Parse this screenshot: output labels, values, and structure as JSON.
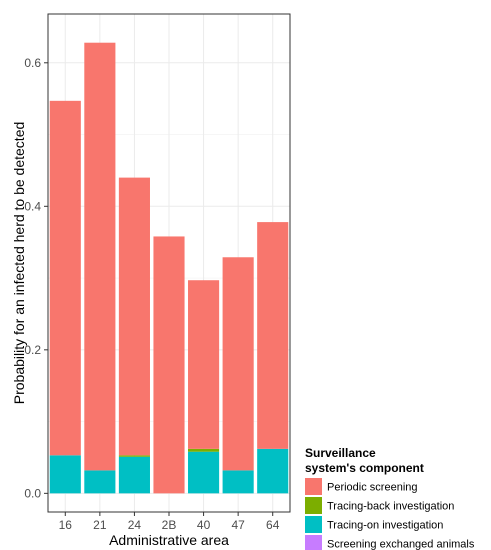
{
  "chart_data": {
    "type": "bar",
    "stacked": true,
    "categories": [
      "16",
      "21",
      "24",
      "2B",
      "40",
      "47",
      "64"
    ],
    "series": [
      {
        "name": "Tracing-on investigation",
        "color": "#00BFC4",
        "values": [
          0.053,
          0.032,
          0.051,
          0.0,
          0.058,
          0.032,
          0.062
        ]
      },
      {
        "name": "Tracing-back investigation",
        "color": "#7CAE00",
        "values": [
          0.0,
          0.0,
          0.002,
          0.0,
          0.004,
          0.0,
          0.0
        ]
      },
      {
        "name": "Screening exchanged animals",
        "color": "#C77CFF",
        "values": [
          0.0,
          0.0,
          0.0,
          0.0,
          0.0,
          0.0,
          0.0
        ]
      },
      {
        "name": "Periodic screening",
        "color": "#F8766D",
        "values": [
          0.494,
          0.596,
          0.387,
          0.358,
          0.235,
          0.297,
          0.316
        ]
      }
    ],
    "xlabel": "Administrative area",
    "ylabel": "Probability for an infected herd to be detected",
    "ylim": [
      -0.026,
      0.668
    ],
    "yticks": [
      "0.0",
      "0.2",
      "0.4",
      "0.6"
    ],
    "ytick_values": [
      0.0,
      0.2,
      0.4,
      0.6
    ],
    "grid": true,
    "legend": {
      "position": "bottom-right",
      "title_lines": [
        "Surveillance",
        "system's component"
      ],
      "entries": [
        {
          "label": "Periodic screening",
          "color": "#F8766D"
        },
        {
          "label": "Tracing-back investigation",
          "color": "#7CAE00"
        },
        {
          "label": "Tracing-on investigation",
          "color": "#00BFC4"
        },
        {
          "label": "Screening exchanged animals",
          "color": "#C77CFF"
        }
      ]
    }
  }
}
